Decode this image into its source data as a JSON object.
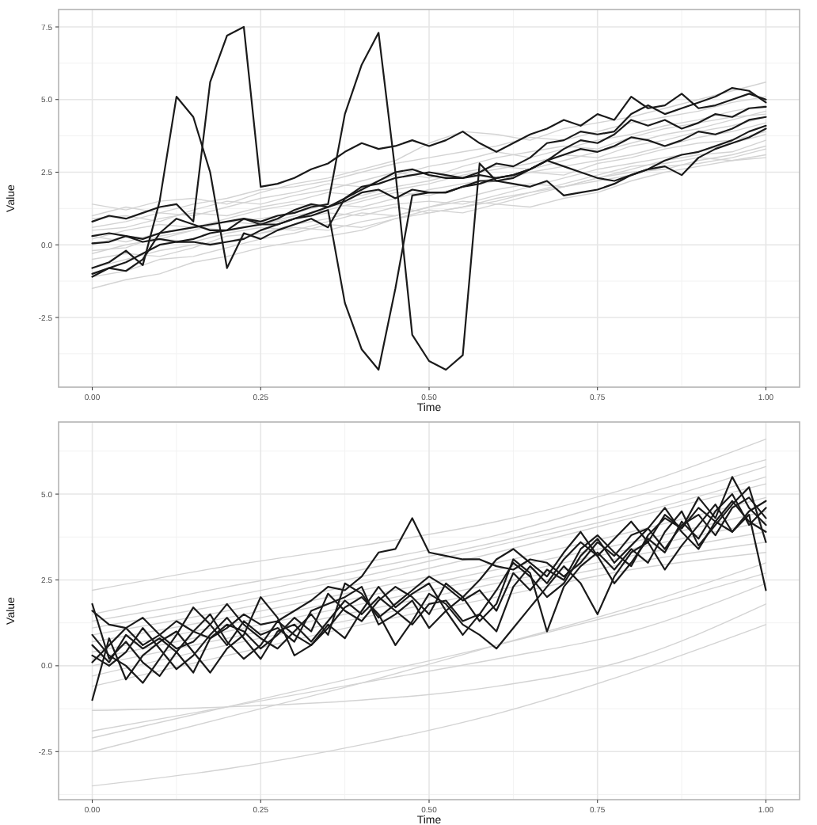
{
  "chart_data": [
    {
      "type": "line",
      "xlabel": "Time",
      "ylabel": "Value",
      "xlim": [
        -0.05,
        1.05
      ],
      "ylim": [
        -4.9,
        8.1
      ],
      "xticks": [
        {
          "value": 0,
          "label": "0.00"
        },
        {
          "value": 0.25,
          "label": "0.25"
        },
        {
          "value": 0.5,
          "label": "0.50"
        },
        {
          "value": 0.75,
          "label": "0.75"
        },
        {
          "value": 1,
          "label": "1.00"
        }
      ],
      "yticks": [
        {
          "value": -2.5,
          "label": "-2.5"
        },
        {
          "value": 0,
          "label": "0.0"
        },
        {
          "value": 2.5,
          "label": "2.5"
        },
        {
          "value": 5,
          "label": "5.0"
        },
        {
          "value": 7.5,
          "label": "7.5"
        }
      ],
      "grid": true,
      "line_style": "solid",
      "x": [
        0,
        0.025,
        0.05,
        0.075,
        0.1,
        0.125,
        0.15,
        0.175,
        0.2,
        0.225,
        0.25,
        0.275,
        0.3,
        0.325,
        0.35,
        0.375,
        0.4,
        0.425,
        0.45,
        0.475,
        0.5,
        0.525,
        0.55,
        0.575,
        0.6,
        0.625,
        0.65,
        0.675,
        0.7,
        0.725,
        0.75,
        0.775,
        0.8,
        0.825,
        0.85,
        0.875,
        0.9,
        0.925,
        0.95,
        0.975,
        1
      ],
      "series": [
        {
          "color": "#d3d3d3",
          "x": [
            0,
            0.05,
            0.1,
            0.15,
            0.2,
            0.25,
            0.3,
            0.35,
            0.4,
            0.45,
            0.5,
            0.55,
            0.6,
            0.65,
            0.7,
            0.75,
            0.8,
            0.85,
            0.9,
            0.95,
            1
          ],
          "values": [
            -1.5,
            -1.2,
            -1.0,
            -0.6,
            -0.4,
            -0.1,
            0.1,
            0.3,
            0.5,
            0.9,
            1.1,
            1.3,
            1.6,
            1.8,
            2.0,
            2.2,
            2.4,
            2.7,
            2.8,
            3.0,
            3.3
          ]
        },
        {
          "color": "#d3d3d3",
          "x": [
            0,
            0.05,
            0.1,
            0.15,
            0.2,
            0.25,
            0.3,
            0.35,
            0.4,
            0.45,
            0.5,
            0.55,
            0.6,
            0.65,
            0.7,
            0.75,
            0.8,
            0.85,
            0.9,
            0.95,
            1
          ],
          "values": [
            -0.8,
            -0.5,
            -0.2,
            0.0,
            0.1,
            0.4,
            0.6,
            0.5,
            0.8,
            1.0,
            1.3,
            1.5,
            1.4,
            1.7,
            2.0,
            2.3,
            2.5,
            2.6,
            2.9,
            3.1,
            3.4
          ]
        },
        {
          "color": "#d3d3d3",
          "x": [
            0,
            0.05,
            0.1,
            0.15,
            0.2,
            0.25,
            0.3,
            0.35,
            0.4,
            0.45,
            0.5,
            0.55,
            0.6,
            0.65,
            0.7,
            0.75,
            0.8,
            0.85,
            0.9,
            0.95,
            1
          ],
          "values": [
            0.0,
            0.3,
            0.2,
            0.5,
            0.8,
            0.9,
            1.1,
            1.4,
            1.3,
            1.6,
            1.9,
            2.1,
            2.3,
            2.5,
            2.4,
            2.8,
            3.0,
            3.3,
            3.5,
            3.6,
            3.9
          ]
        },
        {
          "color": "#d3d3d3",
          "x": [
            0,
            0.05,
            0.1,
            0.15,
            0.2,
            0.25,
            0.3,
            0.35,
            0.4,
            0.45,
            0.5,
            0.55,
            0.6,
            0.65,
            0.7,
            0.75,
            0.8,
            0.85,
            0.9,
            0.95,
            1
          ],
          "values": [
            0.6,
            0.8,
            1.1,
            1.0,
            1.3,
            1.6,
            1.8,
            2.1,
            2.0,
            2.4,
            2.7,
            2.9,
            3.2,
            3.0,
            3.3,
            3.6,
            3.8,
            4.1,
            4.3,
            4.6,
            4.8
          ]
        },
        {
          "color": "#d3d3d3",
          "x": [
            0,
            0.05,
            0.1,
            0.15,
            0.2,
            0.25,
            0.3,
            0.35,
            0.4,
            0.45,
            0.5,
            0.55,
            0.6,
            0.65,
            0.7,
            0.75,
            0.8,
            0.85,
            0.9,
            0.95,
            1
          ],
          "values": [
            1.4,
            1.2,
            1.5,
            1.6,
            1.4,
            1.8,
            2.1,
            2.3,
            2.6,
            2.9,
            3.5,
            3.9,
            3.8,
            3.6,
            4.0,
            4.2,
            4.4,
            4.7,
            5.0,
            5.3,
            5.6
          ]
        },
        {
          "color": "#d3d3d3",
          "x": [
            0,
            0.05,
            0.1,
            0.15,
            0.2,
            0.25,
            0.3,
            0.35,
            0.4,
            0.45,
            0.5,
            0.55,
            0.6,
            0.65,
            0.7,
            0.75,
            0.8,
            0.85,
            0.9,
            0.95,
            1
          ],
          "values": [
            0.3,
            0.1,
            0.4,
            0.6,
            0.5,
            0.7,
            1.0,
            1.2,
            1.5,
            1.8,
            1.7,
            2.0,
            2.2,
            2.5,
            2.7,
            2.9,
            3.1,
            3.4,
            3.7,
            3.9,
            4.2
          ]
        },
        {
          "color": "#d3d3d3",
          "x": [
            0,
            0.05,
            0.1,
            0.15,
            0.2,
            0.25,
            0.3,
            0.35,
            0.4,
            0.45,
            0.5,
            0.55,
            0.6,
            0.65,
            0.7,
            0.75,
            0.8,
            0.85,
            0.9,
            0.95,
            1
          ],
          "values": [
            -0.3,
            0.0,
            0.2,
            0.1,
            0.4,
            0.6,
            0.5,
            0.8,
            1.1,
            1.0,
            1.3,
            1.6,
            1.9,
            2.1,
            2.0,
            2.3,
            2.6,
            2.9,
            3.1,
            3.2,
            3.6
          ]
        },
        {
          "color": "#d3d3d3",
          "x": [
            0,
            0.05,
            0.1,
            0.15,
            0.2,
            0.25,
            0.3,
            0.35,
            0.4,
            0.45,
            0.5,
            0.55,
            0.6,
            0.65,
            0.7,
            0.75,
            0.8,
            0.85,
            0.9,
            0.95,
            1
          ],
          "values": [
            0.9,
            1.0,
            0.8,
            1.2,
            1.5,
            1.4,
            1.7,
            1.9,
            2.2,
            2.5,
            2.3,
            2.7,
            3.0,
            3.2,
            3.4,
            3.3,
            3.7,
            4.0,
            4.2,
            4.4,
            4.5
          ]
        },
        {
          "color": "#d3d3d3",
          "x": [
            0,
            0.05,
            0.1,
            0.15,
            0.2,
            0.25,
            0.3,
            0.35,
            0.4,
            0.45,
            0.5,
            0.55,
            0.6,
            0.65,
            0.7,
            0.75,
            0.8,
            0.85,
            0.9,
            0.95,
            1
          ],
          "values": [
            -1.1,
            -0.9,
            -0.5,
            -0.4,
            -0.1,
            0.2,
            0.4,
            0.7,
            0.6,
            0.9,
            1.2,
            1.1,
            1.4,
            1.3,
            1.6,
            1.8,
            2.2,
            2.5,
            2.7,
            2.9,
            3.1
          ]
        },
        {
          "color": "#d3d3d3",
          "x": [
            0,
            0.05,
            0.1,
            0.15,
            0.2,
            0.25,
            0.3,
            0.35,
            0.4,
            0.45,
            0.5,
            0.55,
            0.6,
            0.65,
            0.7,
            0.75,
            0.8,
            0.85,
            0.9,
            0.95,
            1
          ],
          "values": [
            0.2,
            0.5,
            0.7,
            0.6,
            0.9,
            1.2,
            1.4,
            1.3,
            1.6,
            1.9,
            2.1,
            2.4,
            2.6,
            2.8,
            3.1,
            3.0,
            3.4,
            3.6,
            3.9,
            4.1,
            4.4
          ]
        },
        {
          "color": "#d3d3d3",
          "x": [
            0,
            0.05,
            0.1,
            0.15,
            0.2,
            0.25,
            0.3,
            0.35,
            0.4,
            0.45,
            0.5,
            0.55,
            0.6,
            0.65,
            0.7,
            0.75,
            0.8,
            0.85,
            0.9,
            0.95,
            1
          ],
          "values": [
            -0.5,
            -0.3,
            -0.4,
            -0.1,
            0.3,
            0.4,
            0.7,
            0.9,
            1.2,
            1.4,
            1.5,
            1.4,
            1.7,
            2.0,
            2.3,
            2.6,
            2.8,
            3.0,
            3.2,
            3.5,
            3.8
          ]
        },
        {
          "color": "#d3d3d3",
          "x": [
            0,
            0.05,
            0.1,
            0.15,
            0.2,
            0.25,
            0.3,
            0.35,
            0.4,
            0.45,
            0.5,
            0.55,
            0.6,
            0.65,
            0.7,
            0.75,
            0.8,
            0.85,
            0.9,
            0.95,
            1
          ],
          "values": [
            1.0,
            1.3,
            1.1,
            1.4,
            1.6,
            1.9,
            2.0,
            2.2,
            2.5,
            2.8,
            3.0,
            3.2,
            3.4,
            3.7,
            3.6,
            3.9,
            4.2,
            4.4,
            4.6,
            4.9,
            5.1
          ]
        },
        {
          "color": "#d3d3d3",
          "x": [
            0,
            0.05,
            0.1,
            0.15,
            0.2,
            0.25,
            0.3,
            0.35,
            0.4,
            0.45,
            0.5,
            0.55,
            0.6,
            0.65,
            0.7,
            0.75,
            0.8,
            0.85,
            0.9,
            0.95,
            1
          ],
          "values": [
            -0.2,
            -0.1,
            0.3,
            0.5,
            0.8,
            0.7,
            0.9,
            1.1,
            1.0,
            1.3,
            1.1,
            1.3,
            1.5,
            1.8,
            2.1,
            2.4,
            2.7,
            2.8,
            3.0,
            2.9,
            3.0
          ]
        },
        {
          "color": "#d3d3d3",
          "x": [
            0,
            0.05,
            0.1,
            0.15,
            0.2,
            0.25,
            0.3,
            0.35,
            0.4,
            0.45,
            0.5,
            0.55,
            0.6,
            0.65,
            0.7,
            0.75,
            0.8,
            0.85,
            0.9,
            0.95,
            1
          ],
          "values": [
            0.5,
            0.6,
            0.9,
            1.1,
            1.0,
            1.3,
            1.5,
            1.8,
            1.7,
            2.0,
            2.2,
            2.5,
            2.7,
            2.6,
            2.9,
            3.2,
            3.5,
            3.8,
            4.0,
            4.3,
            4.6
          ]
        },
        {
          "color": "#1a1a1a",
          "values": [
            0.05,
            0.1,
            0.3,
            0.2,
            0.4,
            0.5,
            0.6,
            0.7,
            0.8,
            0.9,
            0.8,
            1.0,
            1.1,
            1.3,
            1.4,
            4.5,
            6.2,
            7.3,
            2.5,
            -3.1,
            -4.0,
            -4.3,
            -3.8,
            2.8,
            2.2,
            2.3,
            2.6,
            2.9,
            3.3,
            3.6,
            3.5,
            3.8,
            4.3,
            4.1,
            4.3,
            4.0,
            4.2,
            4.5,
            4.4,
            4.7,
            4.75
          ]
        },
        {
          "color": "#1a1a1a",
          "values": [
            -1.1,
            -0.8,
            -0.6,
            -0.3,
            0.0,
            0.1,
            0.2,
            0.4,
            0.5,
            0.6,
            0.7,
            0.7,
            0.9,
            1.0,
            1.2,
            -2.0,
            -3.6,
            -4.3,
            -1.5,
            1.7,
            1.8,
            1.8,
            2.0,
            2.2,
            2.2,
            2.1,
            2.0,
            2.2,
            1.7,
            1.8,
            1.9,
            2.1,
            2.4,
            2.6,
            2.7,
            2.4,
            3.0,
            3.3,
            3.5,
            3.7,
            4.0
          ]
        },
        {
          "color": "#1a1a1a",
          "values": [
            -0.8,
            -0.6,
            -0.2,
            -0.7,
            1.5,
            5.1,
            4.4,
            2.5,
            -0.8,
            0.4,
            0.2,
            0.5,
            0.7,
            0.9,
            0.6,
            1.6,
            1.9,
            2.2,
            2.5,
            2.6,
            2.4,
            2.3,
            2.3,
            2.5,
            2.8,
            2.7,
            3.0,
            3.5,
            3.6,
            3.9,
            3.8,
            3.9,
            4.5,
            4.8,
            4.5,
            4.7,
            4.9,
            5.1,
            5.4,
            5.3,
            4.9
          ]
        },
        {
          "color": "#1a1a1a",
          "values": [
            0.8,
            1.0,
            0.9,
            1.1,
            1.3,
            1.4,
            0.8,
            5.6,
            7.2,
            7.5,
            2.0,
            2.1,
            2.3,
            2.6,
            2.8,
            3.2,
            3.5,
            3.3,
            3.4,
            3.6,
            3.4,
            3.6,
            3.9,
            3.5,
            3.2,
            3.5,
            3.8,
            4.0,
            4.3,
            4.1,
            4.5,
            4.3,
            5.1,
            4.7,
            4.8,
            5.2,
            4.7,
            4.8,
            5.0,
            5.2,
            5.0
          ]
        },
        {
          "color": "#1a1a1a",
          "values": [
            -1.0,
            -0.8,
            -0.9,
            -0.5,
            0.4,
            0.9,
            0.7,
            0.5,
            0.5,
            0.9,
            0.7,
            0.9,
            1.2,
            1.4,
            1.3,
            1.5,
            1.8,
            1.9,
            1.6,
            1.9,
            1.8,
            1.8,
            2.0,
            2.1,
            2.3,
            2.4,
            2.6,
            2.9,
            3.1,
            3.3,
            3.2,
            3.4,
            3.7,
            3.6,
            3.4,
            3.6,
            3.9,
            3.8,
            4.0,
            4.3,
            4.4
          ]
        },
        {
          "color": "#1a1a1a",
          "values": [
            0.3,
            0.4,
            0.3,
            0.1,
            0.2,
            0.1,
            0.1,
            0.0,
            0.1,
            0.2,
            0.5,
            0.7,
            0.9,
            1.1,
            1.3,
            1.6,
            2.0,
            2.1,
            2.3,
            2.4,
            2.5,
            2.4,
            2.3,
            2.4,
            2.3,
            2.4,
            2.6,
            2.9,
            2.7,
            2.5,
            2.3,
            2.2,
            2.4,
            2.6,
            2.9,
            3.1,
            3.2,
            3.4,
            3.6,
            3.9,
            4.1
          ]
        }
      ]
    },
    {
      "type": "line",
      "xlabel": "Time",
      "ylabel": "Value",
      "xlim": [
        -0.05,
        1.05
      ],
      "ylim": [
        -3.9,
        7.1
      ],
      "xticks": [
        {
          "value": 0,
          "label": "0.00"
        },
        {
          "value": 0.25,
          "label": "0.25"
        },
        {
          "value": 0.5,
          "label": "0.50"
        },
        {
          "value": 0.75,
          "label": "0.75"
        },
        {
          "value": 1,
          "label": "1.00"
        }
      ],
      "yticks": [
        {
          "value": -2.5,
          "label": "-2.5"
        },
        {
          "value": 0,
          "label": "0.0"
        },
        {
          "value": 2.5,
          "label": "2.5"
        },
        {
          "value": 5,
          "label": "5.0"
        }
      ],
      "grid": true,
      "line_style": "solid",
      "x": [
        0,
        0.025,
        0.05,
        0.075,
        0.1,
        0.125,
        0.15,
        0.175,
        0.2,
        0.225,
        0.25,
        0.275,
        0.3,
        0.325,
        0.35,
        0.375,
        0.4,
        0.425,
        0.45,
        0.475,
        0.5,
        0.525,
        0.55,
        0.575,
        0.6,
        0.625,
        0.65,
        0.675,
        0.7,
        0.725,
        0.75,
        0.775,
        0.8,
        0.825,
        0.85,
        0.875,
        0.9,
        0.925,
        0.95,
        0.975,
        1
      ],
      "series": [
        {
          "color": "#d3d3d3",
          "x": [
            0,
            0.2,
            0.4,
            0.6,
            0.8,
            1
          ],
          "values": [
            2.2,
            2.9,
            3.5,
            4.2,
            5.2,
            6.6
          ]
        },
        {
          "color": "#d3d3d3",
          "x": [
            0,
            0.2,
            0.4,
            0.6,
            0.8,
            1
          ],
          "values": [
            1.5,
            2.3,
            3.0,
            3.8,
            4.9,
            6.0
          ]
        },
        {
          "color": "#d3d3d3",
          "x": [
            0,
            0.2,
            0.4,
            0.6,
            0.8,
            1
          ],
          "values": [
            1.3,
            2.0,
            2.8,
            3.6,
            4.6,
            5.8
          ]
        },
        {
          "color": "#d3d3d3",
          "x": [
            0,
            0.2,
            0.4,
            0.6,
            0.8,
            1
          ],
          "values": [
            1.1,
            1.8,
            2.6,
            3.5,
            4.4,
            5.5
          ]
        },
        {
          "color": "#d3d3d3",
          "x": [
            0,
            0.2,
            0.4,
            0.6,
            0.8,
            1
          ],
          "values": [
            0.9,
            1.6,
            2.4,
            3.3,
            4.3,
            5.3
          ]
        },
        {
          "color": "#d3d3d3",
          "x": [
            0,
            0.2,
            0.4,
            0.6,
            0.8,
            1
          ],
          "values": [
            0.7,
            1.4,
            2.2,
            3.0,
            3.9,
            4.9
          ]
        },
        {
          "color": "#d3d3d3",
          "x": [
            0,
            0.2,
            0.4,
            0.6,
            0.8,
            1
          ],
          "values": [
            0.4,
            1.2,
            2.0,
            2.8,
            3.6,
            4.5
          ]
        },
        {
          "color": "#d3d3d3",
          "x": [
            0,
            0.2,
            0.4,
            0.6,
            0.8,
            1
          ],
          "values": [
            0.2,
            1.0,
            1.8,
            2.6,
            3.4,
            4.2
          ]
        },
        {
          "color": "#d3d3d3",
          "x": [
            0,
            0.2,
            0.4,
            0.6,
            0.8,
            1
          ],
          "values": [
            0.0,
            0.8,
            1.6,
            2.4,
            3.2,
            3.9
          ]
        },
        {
          "color": "#d3d3d3",
          "x": [
            0,
            0.2,
            0.4,
            0.6,
            0.8,
            1
          ],
          "values": [
            -0.3,
            0.6,
            1.4,
            2.2,
            3.0,
            3.6
          ]
        },
        {
          "color": "#d3d3d3",
          "x": [
            0,
            0.2,
            0.4,
            0.6,
            0.8,
            1
          ],
          "values": [
            -0.6,
            0.3,
            1.2,
            2.0,
            2.8,
            3.3
          ]
        },
        {
          "color": "#d3d3d3",
          "x": [
            0,
            0.2,
            0.4,
            0.6,
            0.8,
            1
          ],
          "values": [
            -1.3,
            -1.2,
            -1.0,
            -0.6,
            0.2,
            1.8
          ]
        },
        {
          "color": "#d3d3d3",
          "x": [
            0,
            0.2,
            0.4,
            0.6,
            0.8,
            1
          ],
          "values": [
            -1.9,
            -1.2,
            -0.5,
            0.2,
            1.0,
            2.4
          ]
        },
        {
          "color": "#d3d3d3",
          "x": [
            0,
            0.2,
            0.4,
            0.6,
            0.8,
            1
          ],
          "values": [
            -2.1,
            -1.2,
            -0.3,
            0.6,
            1.6,
            2.7
          ]
        },
        {
          "color": "#d3d3d3",
          "x": [
            0,
            0.2,
            0.4,
            0.6,
            0.8,
            1
          ],
          "values": [
            -2.5,
            -1.5,
            -0.5,
            0.6,
            1.7,
            3.0
          ]
        },
        {
          "color": "#d3d3d3",
          "x": [
            0,
            0.2,
            0.4,
            0.6,
            0.8,
            1
          ],
          "values": [
            -3.5,
            -3.0,
            -2.3,
            -1.4,
            -0.2,
            1.2
          ]
        },
        {
          "color": "#1a1a1a",
          "values": [
            1.6,
            1.2,
            1.1,
            0.6,
            0.9,
            1.3,
            1.0,
            0.8,
            1.1,
            1.5,
            1.2,
            1.3,
            1.6,
            1.9,
            2.3,
            2.2,
            2.6,
            3.3,
            3.4,
            4.3,
            3.3,
            3.2,
            3.1,
            3.1,
            2.9,
            2.8,
            3.1,
            3.0,
            2.6,
            3.0,
            3.6,
            3.2,
            3.8,
            4.0,
            3.4,
            4.1,
            4.4,
            3.8,
            4.6,
            4.9,
            4.3
          ]
        },
        {
          "color": "#1a1a1a",
          "values": [
            -1.0,
            0.8,
            -0.4,
            0.3,
            0.7,
            1.0,
            0.4,
            -0.2,
            0.5,
            0.9,
            2.0,
            1.4,
            0.3,
            0.6,
            1.1,
            1.7,
            2.0,
            1.5,
            0.6,
            1.3,
            2.1,
            1.8,
            1.2,
            0.9,
            0.5,
            1.1,
            1.7,
            2.3,
            2.9,
            2.4,
            1.5,
            2.6,
            3.3,
            3.6,
            2.8,
            3.5,
            4.1,
            4.7,
            3.9,
            4.4,
            2.2
          ]
        },
        {
          "color": "#1a1a1a",
          "values": [
            0.3,
            0.0,
            0.4,
            1.1,
            0.5,
            -0.1,
            0.3,
            0.9,
            1.4,
            0.8,
            0.2,
            1.0,
            1.2,
            0.7,
            1.3,
            1.9,
            1.5,
            2.0,
            1.6,
            1.2,
            1.8,
            1.9,
            1.3,
            1.5,
            1.0,
            2.3,
            2.9,
            2.4,
            3.1,
            3.6,
            3.2,
            2.4,
            3.0,
            3.7,
            3.3,
            4.2,
            3.7,
            4.5,
            5.0,
            4.1,
            4.6
          ]
        },
        {
          "color": "#1a1a1a",
          "values": [
            1.8,
            0.2,
            0.7,
            0.1,
            -0.3,
            0.4,
            1.0,
            1.5,
            0.7,
            0.2,
            0.6,
            1.3,
            0.9,
            0.6,
            1.2,
            0.8,
            1.6,
            2.3,
            1.7,
            2.1,
            2.4,
            1.6,
            0.9,
            1.5,
            2.2,
            3.0,
            2.6,
            2.0,
            2.4,
            3.2,
            3.7,
            3.0,
            3.5,
            4.0,
            4.6,
            3.9,
            3.4,
            4.2,
            4.8,
            4.2,
            3.9
          ]
        },
        {
          "color": "#1a1a1a",
          "values": [
            0.6,
            0.1,
            0.9,
            0.5,
            0.8,
            0.4,
            -0.2,
            0.8,
            1.2,
            1.0,
            0.5,
            0.9,
            1.4,
            1.0,
            2.1,
            1.6,
            1.3,
            1.9,
            2.3,
            2.0,
            1.5,
            2.4,
            2.0,
            1.3,
            1.8,
            3.1,
            2.7,
            1.0,
            2.3,
            2.9,
            3.3,
            2.8,
            3.4,
            3.0,
            3.9,
            4.5,
            3.5,
            4.1,
            4.7,
            5.2,
            3.6
          ]
        },
        {
          "color": "#1a1a1a",
          "values": [
            0.1,
            0.6,
            1.1,
            1.4,
            0.9,
            0.5,
            0.7,
            1.2,
            1.8,
            1.2,
            0.8,
            0.5,
            1.0,
            1.5,
            0.9,
            2.4,
            2.1,
            1.4,
            1.8,
            2.2,
            2.6,
            2.3,
            1.9,
            2.2,
            1.6,
            2.7,
            2.2,
            2.8,
            2.5,
            3.4,
            3.8,
            3.3,
            2.9,
            3.8,
            4.3,
            4.0,
            4.6,
            4.2,
            3.9,
            4.5,
            4.8
          ]
        },
        {
          "color": "#1a1a1a",
          "values": [
            0.9,
            0.3,
            0.0,
            -0.5,
            0.2,
            0.9,
            1.7,
            1.2,
            0.6,
            1.3,
            0.9,
            1.1,
            0.7,
            1.6,
            1.8,
            2.0,
            2.3,
            1.2,
            1.5,
            1.9,
            1.1,
            1.6,
            2.0,
            2.5,
            3.1,
            3.4,
            3.0,
            2.6,
            3.3,
            3.9,
            3.2,
            3.7,
            4.2,
            3.6,
            4.4,
            4.0,
            4.9,
            4.3,
            5.5,
            4.6,
            4.1
          ]
        }
      ]
    }
  ]
}
